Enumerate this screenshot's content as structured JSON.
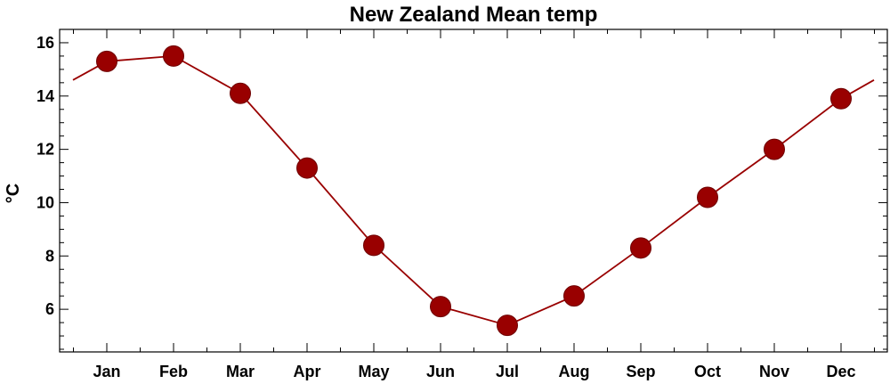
{
  "chart_data": {
    "type": "line",
    "title": "New Zealand Mean temp",
    "xlabel": "",
    "ylabel": "°C",
    "categories": [
      "Jan",
      "Feb",
      "Mar",
      "Apr",
      "May",
      "Jun",
      "Jul",
      "Aug",
      "Sep",
      "Oct",
      "Nov",
      "Dec"
    ],
    "series": [
      {
        "values": [
          15.3,
          15.5,
          14.1,
          11.3,
          8.4,
          6.1,
          5.4,
          6.5,
          8.3,
          10.2,
          12.0,
          13.9
        ]
      }
    ],
    "wrap_values": {
      "start": 14.6,
      "end": 14.6
    },
    "yticks": [
      6,
      8,
      10,
      12,
      14,
      16
    ],
    "ylim": [
      4.4,
      16.5
    ],
    "grid": false,
    "legend": "none",
    "colors": {
      "series": "#990000",
      "marker": "#990000",
      "axis": "#000000"
    }
  }
}
